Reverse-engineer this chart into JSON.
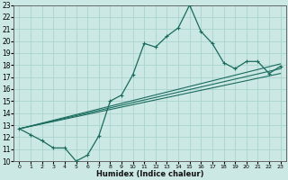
{
  "xlabel": "Humidex (Indice chaleur)",
  "bg_color": "#cce8e4",
  "line_color": "#1a6b5e",
  "grid_color": "#aad4ce",
  "xlim": [
    -0.5,
    23.5
  ],
  "ylim": [
    10,
    23
  ],
  "xticks": [
    0,
    1,
    2,
    3,
    4,
    5,
    6,
    7,
    8,
    9,
    10,
    11,
    12,
    13,
    14,
    15,
    16,
    17,
    18,
    19,
    20,
    21,
    22,
    23
  ],
  "yticks": [
    10,
    11,
    12,
    13,
    14,
    15,
    16,
    17,
    18,
    19,
    20,
    21,
    22,
    23
  ],
  "curve1_x": [
    0,
    1,
    2,
    3,
    4,
    5,
    6,
    7,
    8,
    9,
    10,
    11,
    12,
    13,
    14,
    15,
    16,
    17,
    18,
    19,
    20,
    21,
    22,
    23
  ],
  "curve1_y": [
    12.7,
    12.2,
    11.7,
    11.1,
    11.1,
    10.0,
    10.5,
    12.1,
    15.0,
    15.5,
    17.2,
    19.8,
    19.5,
    20.4,
    21.1,
    23.0,
    20.8,
    19.8,
    18.2,
    17.7,
    18.3,
    18.3,
    17.3,
    17.9
  ],
  "line2_x": [
    0,
    23
  ],
  "line2_y": [
    12.7,
    18.1
  ],
  "line3_x": [
    0,
    23
  ],
  "line3_y": [
    12.7,
    17.3
  ],
  "line4_x": [
    0,
    23
  ],
  "line4_y": [
    12.7,
    17.7
  ]
}
